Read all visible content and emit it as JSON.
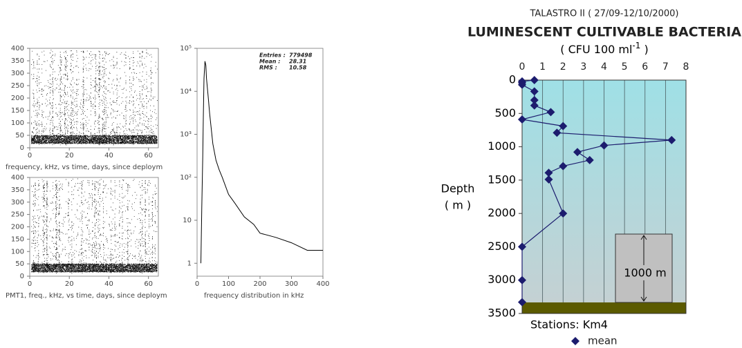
{
  "chart_data": [
    {
      "type": "scatter",
      "xlabel": "frequency, kHz, vs time, days, since deploym",
      "xlim": [
        0,
        65
      ],
      "xticks": [
        0,
        20,
        40,
        60
      ],
      "ylim": [
        0,
        400
      ],
      "yticks": [
        0,
        50,
        100,
        150,
        200,
        250,
        300,
        350,
        400
      ]
    },
    {
      "type": "scatter",
      "xlabel": "PMT1, freq., kHz, vs time, days, since deploym",
      "xlim": [
        0,
        65
      ],
      "xticks": [
        0,
        20,
        40,
        60
      ],
      "ylim": [
        0,
        400
      ],
      "yticks": [
        0,
        50,
        100,
        150,
        200,
        250,
        300,
        350,
        400
      ]
    },
    {
      "type": "line",
      "xlabel": "frequency distribution in kHz",
      "log_y": true,
      "stats": [
        {
          "label": "Entries :",
          "value": 779498
        },
        {
          "label": "Mean  :",
          "value": 28.31
        },
        {
          "label": "RMS   :",
          "value": 10.58
        }
      ],
      "xlim": [
        0,
        400
      ],
      "xticks": [
        0,
        100,
        200,
        300,
        400
      ],
      "ylim": [
        0.5,
        100000
      ],
      "yticks": [
        1,
        10,
        {
          "value": 100,
          "label": "10²"
        },
        {
          "value": 1000,
          "label": "10³"
        },
        {
          "value": 10000,
          "label": "10⁴"
        },
        {
          "value": 100000,
          "label": "10⁵"
        }
      ],
      "x": [
        12,
        15,
        18,
        20,
        22,
        25,
        28,
        30,
        35,
        40,
        50,
        60,
        70,
        80,
        100,
        120,
        150,
        180,
        200,
        250,
        300,
        350,
        400
      ],
      "series": [
        {
          "color": "#000000",
          "values": [
            1,
            20,
            300,
            3000,
            20000,
            50000,
            40000,
            20000,
            8000,
            3000,
            600,
            250,
            150,
            100,
            40,
            25,
            12,
            8,
            5,
            4,
            3,
            2,
            2
          ]
        }
      ]
    },
    {
      "type": "profile",
      "supertitle": "TALASTRO II ( 27/09-12/10/2000)",
      "title": "LUMINESCENT CULTIVABLE BACTERIA",
      "subtitle": [
        "( CFU  100 ml",
        "-1",
        " )"
      ],
      "ylabel": [
        "Depth",
        "( m )"
      ],
      "xlabel": "Stations: Km4",
      "annotation": "1000 m",
      "xlim": [
        0,
        8
      ],
      "xticks": [
        0,
        1,
        2,
        3,
        4,
        5,
        6,
        7,
        8
      ],
      "ylim": [
        0,
        3500
      ],
      "yticks": [
        0,
        500,
        1000,
        1500,
        2000,
        2500,
        3000,
        3500
      ],
      "depths": [
        0,
        20,
        40,
        70,
        170,
        300,
        380,
        480,
        590,
        690,
        790,
        900,
        980,
        1080,
        1200,
        1290,
        1390,
        1490,
        2000,
        2500,
        3000,
        3330
      ],
      "series": [
        {
          "name": "mean",
          "color": "#1c1c6e",
          "values": [
            0.6,
            0,
            0,
            0,
            0.6,
            0.6,
            0.6,
            1.4,
            0,
            2,
            1.7,
            7.3,
            4,
            2.7,
            3.3,
            2,
            1.3,
            1.3,
            2,
            0,
            0,
            0
          ]
        }
      ]
    }
  ]
}
